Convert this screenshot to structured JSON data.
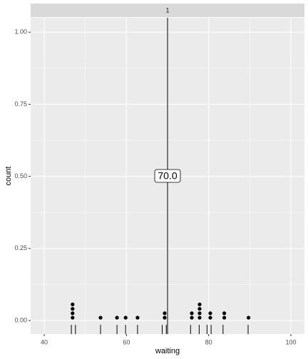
{
  "chart_data": {
    "type": "dotplot",
    "facet": "1",
    "x_label": "waiting",
    "y_label": "count",
    "xlim": [
      36.7,
      103.3
    ],
    "xticks": [
      40,
      60,
      80,
      100
    ],
    "xminor": [
      50,
      70,
      90
    ],
    "ylim": [
      -0.047,
      1.05
    ],
    "yticks": [
      {
        "value": 0,
        "label": "0.00"
      },
      {
        "value": 0.25,
        "label": "0.25"
      },
      {
        "value": 0.5,
        "label": "0.50"
      },
      {
        "value": 0.75,
        "label": "0.75"
      },
      {
        "value": 1,
        "label": "1.00"
      }
    ],
    "yminor": [
      0.125,
      0.375,
      0.625,
      0.875
    ],
    "grid": true,
    "stacks": {
      "x": [
        46.9,
        53.7,
        57.7,
        59.8,
        62.7,
        69.3,
        75.9,
        77.8,
        80.4,
        83.8,
        89.7
      ],
      "counts": [
        4,
        1,
        1,
        1,
        1,
        2,
        2,
        4,
        2,
        2,
        1
      ]
    },
    "rug": [
      46.6,
      47.6,
      53.7,
      57.7,
      59.8,
      62.7,
      68.7,
      69.7,
      75.6,
      77.7,
      79.6,
      80.6,
      83.5,
      89.6
    ],
    "vline": {
      "value": 70,
      "label": "70.0"
    },
    "color": "#000000"
  }
}
